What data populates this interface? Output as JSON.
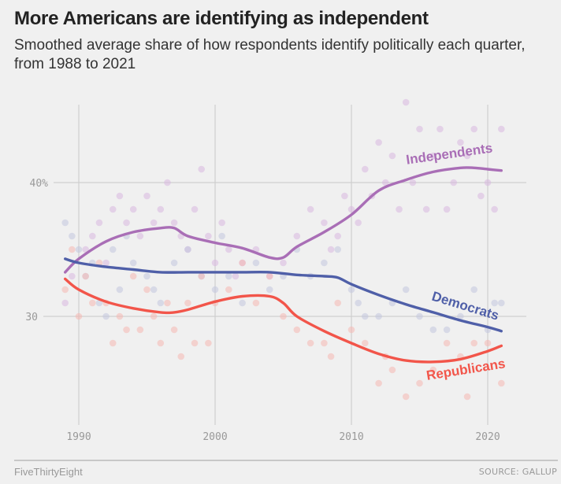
{
  "header": {
    "title": "More Americans are identifying as independent",
    "subtitle": "Smoothed average share of how respondents identify politically each quarter, from 1988 to 2021"
  },
  "footer": {
    "brand": "FiveThirtyEight",
    "source": "SOURCE: GALLUP"
  },
  "chart_data": {
    "type": "line",
    "title": "More Americans are identifying as independent",
    "subtitle": "Smoothed average share of how respondents identify politically each quarter, from 1988 to 2021",
    "xlabel": "",
    "ylabel": "",
    "xlim": [
      1988,
      2022
    ],
    "ylim": [
      22,
      46
    ],
    "x_ticks": [
      1990,
      2000,
      2010,
      2020
    ],
    "x_tick_labels": [
      "1990",
      "2000",
      "2010",
      "2020"
    ],
    "y_ticks": [
      30,
      40
    ],
    "y_tick_labels": [
      "30",
      "40%"
    ],
    "grid": true,
    "legend": "direct-labels",
    "scatter_points_note": "quarterly raw survey readings drawn as faint dots behind smoothed lines",
    "series": [
      {
        "name": "Independents",
        "label": "Independents",
        "color": "#a96eb6",
        "dot_color": "#d9b8e0",
        "x": [
          1989,
          1990,
          1992,
          1994,
          1996,
          1997,
          1998,
          2000,
          2002,
          2004,
          2005,
          2006,
          2008,
          2010,
          2012,
          2014,
          2016,
          2018,
          2019,
          2020,
          2021
        ],
        "values": [
          33.3,
          34.3,
          35.6,
          36.3,
          36.6,
          36.6,
          36.0,
          35.5,
          35.1,
          34.4,
          34.4,
          35.2,
          36.3,
          37.6,
          39.4,
          40.2,
          40.8,
          41.1,
          41.1,
          41.0,
          40.9
        ],
        "dots_x": [
          1989,
          1989.5,
          1990.5,
          1991,
          1991.5,
          1992,
          1992.5,
          1993,
          1993.5,
          1994,
          1994.5,
          1995,
          1995.5,
          1996,
          1996.5,
          1997,
          1997.5,
          1998,
          1998.5,
          1999,
          1999.5,
          2000,
          2000.5,
          2001,
          2001.5,
          2002,
          2003,
          2004,
          2005,
          2006,
          2007,
          2008,
          2008.5,
          2009,
          2009.5,
          2010,
          2010.5,
          2011,
          2011.5,
          2012,
          2012.5,
          2013,
          2013.5,
          2014,
          2014.5,
          2015,
          2015.5,
          2016,
          2016.5,
          2017,
          2017.5,
          2018,
          2018.5,
          2019,
          2019.5,
          2020,
          2020.5,
          2021
        ],
        "dots_y": [
          31,
          33,
          35,
          36,
          37,
          34,
          38,
          39,
          37,
          38,
          36,
          39,
          37,
          38,
          40,
          37,
          36,
          35,
          38,
          41,
          36,
          34,
          37,
          35,
          33,
          34,
          35,
          33,
          34,
          36,
          38,
          37,
          35,
          36,
          39,
          38,
          37,
          41,
          39,
          43,
          40,
          42,
          38,
          46,
          40,
          44,
          38,
          42,
          44,
          38,
          40,
          43,
          42,
          44,
          39,
          40,
          38,
          44
        ]
      },
      {
        "name": "Democrats",
        "label": "Democrats",
        "color": "#4f5fa8",
        "dot_color": "#c2c7df",
        "x": [
          1989,
          1990,
          1992,
          1994,
          1996,
          1998,
          2000,
          2002,
          2004,
          2006,
          2008,
          2009,
          2010,
          2012,
          2014,
          2016,
          2018,
          2020,
          2021
        ],
        "values": [
          34.3,
          34.0,
          33.7,
          33.5,
          33.3,
          33.3,
          33.3,
          33.3,
          33.3,
          33.1,
          33.0,
          32.9,
          32.4,
          31.6,
          30.9,
          30.3,
          29.7,
          29.2,
          28.9
        ],
        "dots_x": [
          1989,
          1989.5,
          1990,
          1990.5,
          1991,
          1991.5,
          1992,
          1992.5,
          1993,
          1993.5,
          1994,
          1995,
          1995.5,
          1996,
          1997,
          1998,
          1999,
          2000,
          2000.5,
          2001,
          2002,
          2003,
          2004,
          2005,
          2006,
          2007,
          2008,
          2009,
          2010,
          2010.5,
          2011,
          2012,
          2013,
          2014,
          2015,
          2016,
          2017,
          2018,
          2019,
          2020,
          2020.5,
          2021
        ],
        "dots_y": [
          37,
          36,
          35,
          33,
          34,
          31,
          30,
          35,
          32,
          36,
          34,
          33,
          32,
          31,
          34,
          35,
          33,
          32,
          36,
          33,
          31,
          34,
          32,
          33,
          35,
          33,
          34,
          35,
          32,
          31,
          30,
          30,
          31,
          32,
          30,
          29,
          29,
          30,
          32,
          29,
          31,
          31
        ]
      },
      {
        "name": "Republicans",
        "label": "Republicans",
        "color": "#f2554a",
        "dot_color": "#f5b8b2",
        "x": [
          1989,
          1990,
          1992,
          1994,
          1996,
          1997,
          1998,
          2000,
          2002,
          2004,
          2005,
          2006,
          2008,
          2010,
          2012,
          2014,
          2016,
          2018,
          2020,
          2021
        ],
        "values": [
          32.8,
          32.0,
          31.1,
          30.6,
          30.3,
          30.3,
          30.5,
          31.1,
          31.5,
          31.5,
          31.0,
          30.0,
          28.9,
          28.0,
          27.2,
          26.7,
          26.6,
          26.8,
          27.4,
          27.8
        ],
        "dots_x": [
          1989,
          1989.5,
          1990,
          1990.5,
          1991,
          1991.5,
          1992,
          1992.5,
          1993,
          1993.5,
          1994,
          1994.5,
          1995,
          1995.5,
          1996,
          1996.5,
          1997,
          1997.5,
          1998,
          1998.5,
          1999,
          1999.5,
          2000,
          2001,
          2002,
          2003,
          2004,
          2005,
          2006,
          2007,
          2008,
          2008.5,
          2009,
          2010,
          2011,
          2012,
          2012.5,
          2013,
          2014,
          2015,
          2016,
          2017,
          2018,
          2018.5,
          2019,
          2020,
          2021
        ],
        "dots_y": [
          32,
          35,
          30,
          33,
          31,
          34,
          31,
          28,
          30,
          29,
          33,
          29,
          32,
          30,
          28,
          31,
          29,
          27,
          31,
          28,
          33,
          28,
          31,
          32,
          34,
          31,
          33,
          30,
          29,
          28,
          28,
          27,
          31,
          29,
          28,
          25,
          27,
          26,
          24,
          25,
          26,
          28,
          27,
          24,
          28,
          28,
          25
        ]
      }
    ]
  }
}
